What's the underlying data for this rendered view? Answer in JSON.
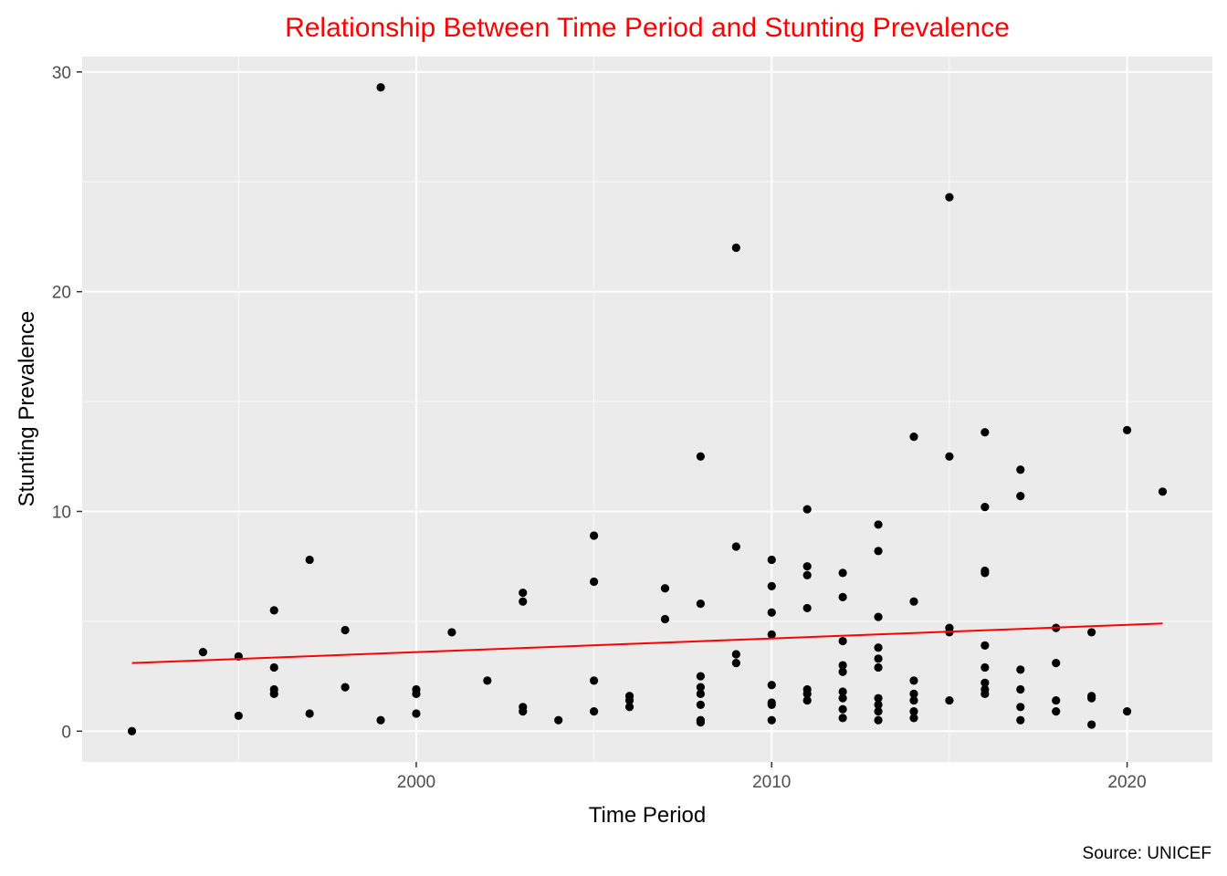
{
  "chart_data": {
    "type": "scatter",
    "title": "Relationship Between Time Period and Stunting Prevalence",
    "xlabel": "Time Period",
    "ylabel": "Stunting Prevalence",
    "caption": "Source: UNICEF",
    "xlim": [
      1990.6,
      2022.4
    ],
    "ylim": [
      -1.4,
      30.7
    ],
    "x_ticks": [
      2000,
      2010,
      2020
    ],
    "y_ticks": [
      0,
      10,
      20,
      30
    ],
    "grid": true,
    "legend": "none",
    "colors": {
      "panel": "#ebebeb",
      "grid": "#ffffff",
      "points": "#000000",
      "trend": "#ff0000",
      "title": "#ff0000",
      "ticks": "#4d4d4d"
    },
    "trend_line": {
      "x": [
        1992,
        2021
      ],
      "y": [
        3.1,
        4.9
      ]
    },
    "points": [
      {
        "x": 1992,
        "y": 0.0
      },
      {
        "x": 1994,
        "y": 3.6
      },
      {
        "x": 1995,
        "y": 3.4
      },
      {
        "x": 1995,
        "y": 0.7
      },
      {
        "x": 1996,
        "y": 5.5
      },
      {
        "x": 1996,
        "y": 2.9
      },
      {
        "x": 1996,
        "y": 1.9
      },
      {
        "x": 1996,
        "y": 1.7
      },
      {
        "x": 1997,
        "y": 7.8
      },
      {
        "x": 1997,
        "y": 0.8
      },
      {
        "x": 1998,
        "y": 4.6
      },
      {
        "x": 1998,
        "y": 2.0
      },
      {
        "x": 1999,
        "y": 29.3
      },
      {
        "x": 1999,
        "y": 0.5
      },
      {
        "x": 2000,
        "y": 1.9
      },
      {
        "x": 2000,
        "y": 1.7
      },
      {
        "x": 2000,
        "y": 0.8
      },
      {
        "x": 2001,
        "y": 4.5
      },
      {
        "x": 2002,
        "y": 2.3
      },
      {
        "x": 2003,
        "y": 6.3
      },
      {
        "x": 2003,
        "y": 5.9
      },
      {
        "x": 2003,
        "y": 1.1
      },
      {
        "x": 2003,
        "y": 0.9
      },
      {
        "x": 2004,
        "y": 0.5
      },
      {
        "x": 2005,
        "y": 8.9
      },
      {
        "x": 2005,
        "y": 6.8
      },
      {
        "x": 2005,
        "y": 2.3
      },
      {
        "x": 2005,
        "y": 0.9
      },
      {
        "x": 2006,
        "y": 1.6
      },
      {
        "x": 2006,
        "y": 1.4
      },
      {
        "x": 2006,
        "y": 1.1
      },
      {
        "x": 2007,
        "y": 6.5
      },
      {
        "x": 2007,
        "y": 5.1
      },
      {
        "x": 2008,
        "y": 12.5
      },
      {
        "x": 2008,
        "y": 5.8
      },
      {
        "x": 2008,
        "y": 2.5
      },
      {
        "x": 2008,
        "y": 2.0
      },
      {
        "x": 2008,
        "y": 1.7
      },
      {
        "x": 2008,
        "y": 1.2
      },
      {
        "x": 2008,
        "y": 0.5
      },
      {
        "x": 2008,
        "y": 0.4
      },
      {
        "x": 2009,
        "y": 22.0
      },
      {
        "x": 2009,
        "y": 8.4
      },
      {
        "x": 2009,
        "y": 3.5
      },
      {
        "x": 2009,
        "y": 3.1
      },
      {
        "x": 2010,
        "y": 7.8
      },
      {
        "x": 2010,
        "y": 6.6
      },
      {
        "x": 2010,
        "y": 5.4
      },
      {
        "x": 2010,
        "y": 4.4
      },
      {
        "x": 2010,
        "y": 2.1
      },
      {
        "x": 2010,
        "y": 1.3
      },
      {
        "x": 2010,
        "y": 1.2
      },
      {
        "x": 2010,
        "y": 0.5
      },
      {
        "x": 2011,
        "y": 10.1
      },
      {
        "x": 2011,
        "y": 7.5
      },
      {
        "x": 2011,
        "y": 7.1
      },
      {
        "x": 2011,
        "y": 5.6
      },
      {
        "x": 2011,
        "y": 1.9
      },
      {
        "x": 2011,
        "y": 1.7
      },
      {
        "x": 2011,
        "y": 1.4
      },
      {
        "x": 2012,
        "y": 7.2
      },
      {
        "x": 2012,
        "y": 6.1
      },
      {
        "x": 2012,
        "y": 4.1
      },
      {
        "x": 2012,
        "y": 3.0
      },
      {
        "x": 2012,
        "y": 2.7
      },
      {
        "x": 2012,
        "y": 1.8
      },
      {
        "x": 2012,
        "y": 1.5
      },
      {
        "x": 2012,
        "y": 1.0
      },
      {
        "x": 2012,
        "y": 0.6
      },
      {
        "x": 2013,
        "y": 9.4
      },
      {
        "x": 2013,
        "y": 8.2
      },
      {
        "x": 2013,
        "y": 5.2
      },
      {
        "x": 2013,
        "y": 3.8
      },
      {
        "x": 2013,
        "y": 3.3
      },
      {
        "x": 2013,
        "y": 2.9
      },
      {
        "x": 2013,
        "y": 1.5
      },
      {
        "x": 2013,
        "y": 1.2
      },
      {
        "x": 2013,
        "y": 0.9
      },
      {
        "x": 2013,
        "y": 0.5
      },
      {
        "x": 2014,
        "y": 13.4
      },
      {
        "x": 2014,
        "y": 5.9
      },
      {
        "x": 2014,
        "y": 2.3
      },
      {
        "x": 2014,
        "y": 1.7
      },
      {
        "x": 2014,
        "y": 1.4
      },
      {
        "x": 2014,
        "y": 0.9
      },
      {
        "x": 2014,
        "y": 0.6
      },
      {
        "x": 2015,
        "y": 24.3
      },
      {
        "x": 2015,
        "y": 12.5
      },
      {
        "x": 2015,
        "y": 4.7
      },
      {
        "x": 2015,
        "y": 4.5
      },
      {
        "x": 2015,
        "y": 1.4
      },
      {
        "x": 2016,
        "y": 13.6
      },
      {
        "x": 2016,
        "y": 10.2
      },
      {
        "x": 2016,
        "y": 7.3
      },
      {
        "x": 2016,
        "y": 7.2
      },
      {
        "x": 2016,
        "y": 3.9
      },
      {
        "x": 2016,
        "y": 2.9
      },
      {
        "x": 2016,
        "y": 2.2
      },
      {
        "x": 2016,
        "y": 1.9
      },
      {
        "x": 2016,
        "y": 1.7
      },
      {
        "x": 2017,
        "y": 11.9
      },
      {
        "x": 2017,
        "y": 10.7
      },
      {
        "x": 2017,
        "y": 2.8
      },
      {
        "x": 2017,
        "y": 1.9
      },
      {
        "x": 2017,
        "y": 1.1
      },
      {
        "x": 2017,
        "y": 0.5
      },
      {
        "x": 2018,
        "y": 4.7
      },
      {
        "x": 2018,
        "y": 3.1
      },
      {
        "x": 2018,
        "y": 1.4
      },
      {
        "x": 2018,
        "y": 0.9
      },
      {
        "x": 2019,
        "y": 4.5
      },
      {
        "x": 2019,
        "y": 1.6
      },
      {
        "x": 2019,
        "y": 1.5
      },
      {
        "x": 2019,
        "y": 0.3
      },
      {
        "x": 2020,
        "y": 13.7
      },
      {
        "x": 2020,
        "y": 0.9
      },
      {
        "x": 2021,
        "y": 10.9
      }
    ]
  }
}
